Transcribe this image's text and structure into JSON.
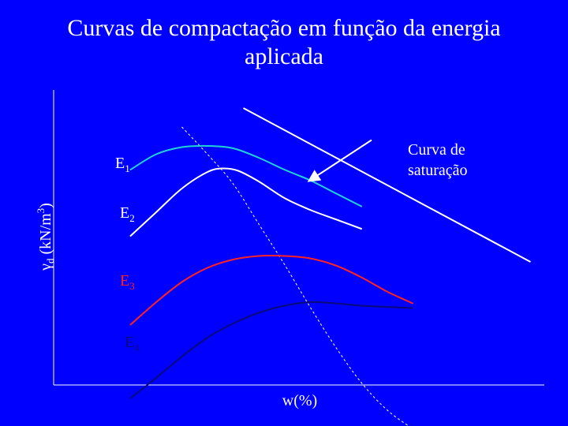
{
  "title_line1": "Curvas de compactação em função da energia",
  "title_line2": "aplicada",
  "colors": {
    "background": "#0000ff",
    "E1": "#1fd3d3",
    "E2": "#ffffff",
    "E3": "#ff2222",
    "E4": "#0a0a7a",
    "saturation": "#ffffff",
    "optimum_line": "#ffffff"
  },
  "chart_data": {
    "type": "line",
    "title": "Curvas de compactação em função da energia aplicada",
    "xlabel": "w(%)",
    "ylabel": "γd (kN/m3)",
    "ylabel_parts": {
      "symbol": "γ",
      "sub": "d",
      "unit": " (kN/m",
      "sup": "3",
      "close": ")"
    },
    "grid": false,
    "axis_ticks": false,
    "series": [
      {
        "name": "E1",
        "label_main": "E",
        "label_sub": "1",
        "color": "#1fd3d3",
        "points": [
          [
            15,
            18.2
          ],
          [
            20,
            19.5
          ],
          [
            25,
            20.1
          ],
          [
            30,
            20.2
          ],
          [
            35,
            20
          ],
          [
            40,
            19.2
          ],
          [
            45,
            18.2
          ],
          [
            50,
            17.3
          ],
          [
            55,
            16.2
          ],
          [
            60,
            15.1
          ]
        ]
      },
      {
        "name": "E2",
        "label_main": "E",
        "label_sub": "2",
        "color": "#ffffff",
        "points": [
          [
            15,
            12.6
          ],
          [
            20,
            14.6
          ],
          [
            25,
            16.6
          ],
          [
            30,
            18
          ],
          [
            33,
            18.3
          ],
          [
            36,
            18.1
          ],
          [
            40,
            17.2
          ],
          [
            45,
            15.8
          ],
          [
            50,
            14.8
          ],
          [
            55,
            14
          ],
          [
            60,
            13.2
          ]
        ]
      },
      {
        "name": "E3",
        "label_main": "E",
        "label_sub": "3",
        "color": "#ff2222",
        "points": [
          [
            15,
            5.1
          ],
          [
            20,
            7
          ],
          [
            25,
            8.7
          ],
          [
            30,
            9.9
          ],
          [
            35,
            10.6
          ],
          [
            40,
            10.9
          ],
          [
            45,
            10.9
          ],
          [
            50,
            10.7
          ],
          [
            55,
            10.1
          ],
          [
            60,
            9.1
          ],
          [
            65,
            7.9
          ],
          [
            70,
            6.9
          ]
        ]
      },
      {
        "name": "E4",
        "label_main": "E",
        "label_sub": "4",
        "color": "#0a0a7a",
        "points": [
          [
            15,
            -1.1
          ],
          [
            20,
            0.6
          ],
          [
            25,
            2.4
          ],
          [
            30,
            4
          ],
          [
            35,
            5.2
          ],
          [
            40,
            6.1
          ],
          [
            45,
            6.7
          ],
          [
            50,
            7
          ],
          [
            55,
            6.9
          ],
          [
            60,
            6.7
          ],
          [
            65,
            6.6
          ],
          [
            70,
            6.5
          ]
        ]
      }
    ],
    "optimum_line": {
      "style": "dashed",
      "color": "#ffffff",
      "points": [
        [
          25,
          21.8
        ],
        [
          30,
          19.5
        ],
        [
          35,
          17
        ],
        [
          40,
          13.6
        ],
        [
          45,
          10.2
        ],
        [
          50,
          6.6
        ],
        [
          55,
          3.2
        ],
        [
          60,
          0.2
        ],
        [
          65,
          -2.1
        ],
        [
          70,
          -3.7
        ]
      ]
    },
    "saturation_curve": {
      "label_line1": "Curva de",
      "label_line2": "saturação",
      "color": "#ffffff",
      "points": [
        [
          37,
          23.4
        ],
        [
          93,
          10.4
        ]
      ],
      "arrow_from": [
        62,
        20.7
      ],
      "arrow_to": [
        50,
        17.3
      ]
    }
  }
}
